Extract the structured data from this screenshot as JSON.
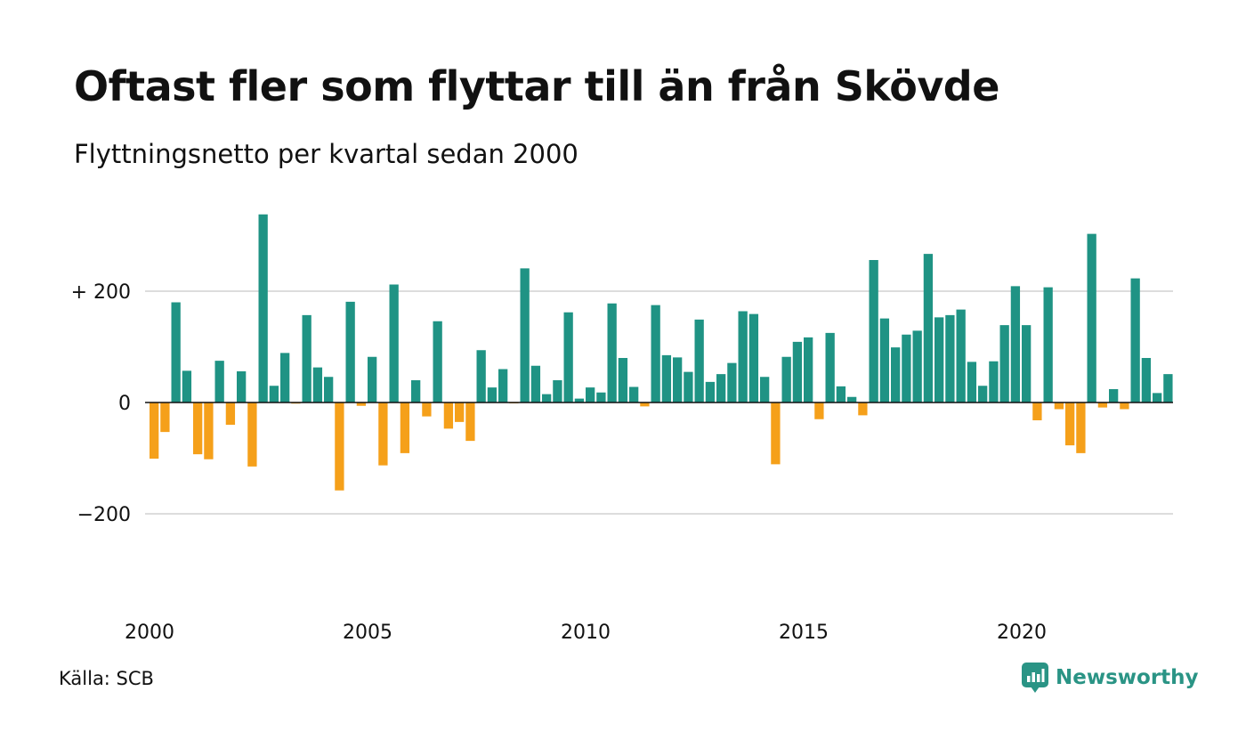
{
  "title": "Oftast fler som flyttar till än från Skövde",
  "subtitle": "Flyttningsnetto per kvartal sedan 2000",
  "source": "Källa: SCB",
  "brand": {
    "name": "Newsworthy",
    "icon": "newsworthy-logo-icon",
    "color": "#2a9485"
  },
  "colors": {
    "positive": "#1f9384",
    "negative": "#f5a01a",
    "grid": "#dddddd",
    "zero_line": "#111111"
  },
  "chart_data": {
    "type": "bar",
    "title": "Oftast fler som flyttar till än från Skövde",
    "subtitle": "Flyttningsnetto per kvartal sedan 2000",
    "xlabel": "",
    "ylabel": "",
    "ylim": [
      -370,
      370
    ],
    "yticks": [
      {
        "value": 200,
        "label": "+ 200"
      },
      {
        "value": 0,
        "label": "0"
      },
      {
        "value": -200,
        "label": "−200"
      }
    ],
    "x_start": {
      "year": 2000,
      "quarter": 1
    },
    "xticks": [
      {
        "label": "2000",
        "year": 2000
      },
      {
        "label": "2005",
        "year": 2005
      },
      {
        "label": "2010",
        "year": 2010
      },
      {
        "label": "2015",
        "year": 2015
      },
      {
        "label": "2020",
        "year": 2020
      }
    ],
    "grid": true,
    "legend": "none",
    "values": [
      -101,
      -53,
      180,
      57,
      -93,
      -102,
      75,
      -40,
      56,
      -115,
      338,
      30,
      89,
      -2,
      157,
      63,
      46,
      -158,
      181,
      -6,
      82,
      -113,
      212,
      -91,
      40,
      -25,
      146,
      -47,
      -35,
      -69,
      94,
      27,
      60,
      -1,
      241,
      66,
      15,
      40,
      162,
      7,
      27,
      18,
      178,
      80,
      28,
      -7,
      175,
      85,
      81,
      55,
      149,
      37,
      51,
      71,
      164,
      159,
      46,
      -111,
      82,
      109,
      117,
      -30,
      125,
      29,
      10,
      -23,
      256,
      151,
      99,
      122,
      129,
      267,
      153,
      157,
      167,
      73,
      30,
      74,
      139,
      209,
      139,
      -32,
      207,
      -12,
      -77,
      -91,
      303,
      -9,
      24,
      -12,
      223,
      80,
      17,
      51
    ]
  }
}
